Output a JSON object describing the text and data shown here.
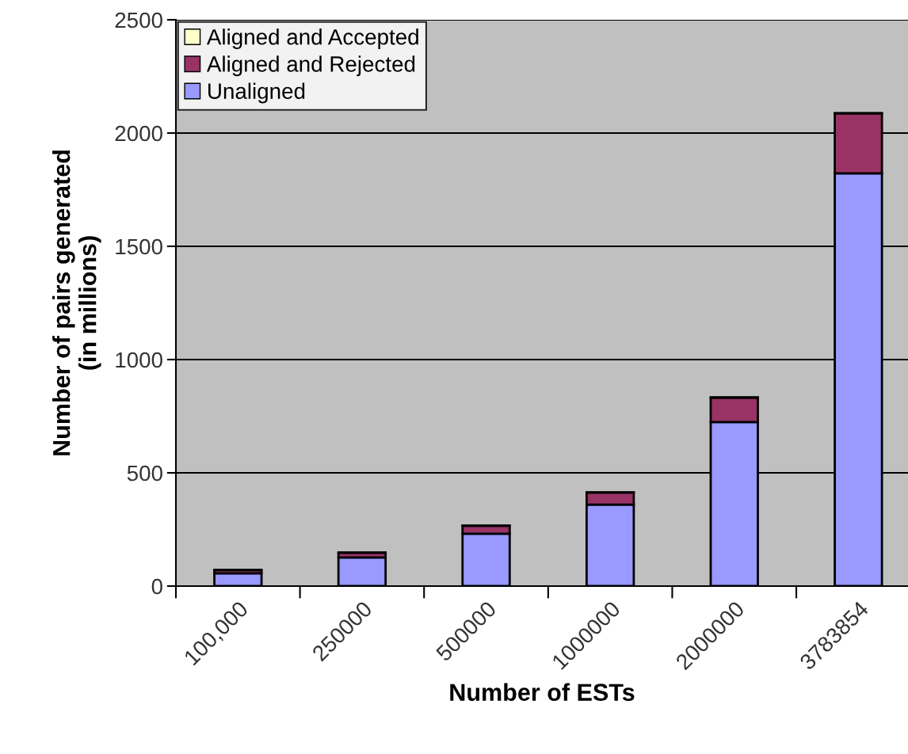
{
  "chart_data": {
    "type": "bar",
    "stacked": true,
    "xlabel": "Number of ESTs",
    "ylabel": "Number of pairs generated\n(in millions)",
    "categories": [
      "100,000",
      "250000",
      "500000",
      "1000000",
      "2000000",
      "3783854"
    ],
    "series": [
      {
        "name": "Unaligned",
        "color": "#9999ff",
        "values": [
          56,
          126,
          231,
          360,
          724,
          1822
        ]
      },
      {
        "name": "Aligned and Rejected",
        "color": "#993366",
        "values": [
          14,
          21,
          35,
          53,
          108,
          265
        ]
      },
      {
        "name": "Aligned and Accepted",
        "color": "#ffffcc",
        "values": [
          1,
          1,
          1,
          1,
          1,
          1
        ]
      }
    ],
    "ylim": [
      0,
      2500
    ],
    "yticks": [
      0,
      500,
      1000,
      1500,
      2000,
      2500
    ],
    "grid": "y",
    "legend": "top left"
  }
}
